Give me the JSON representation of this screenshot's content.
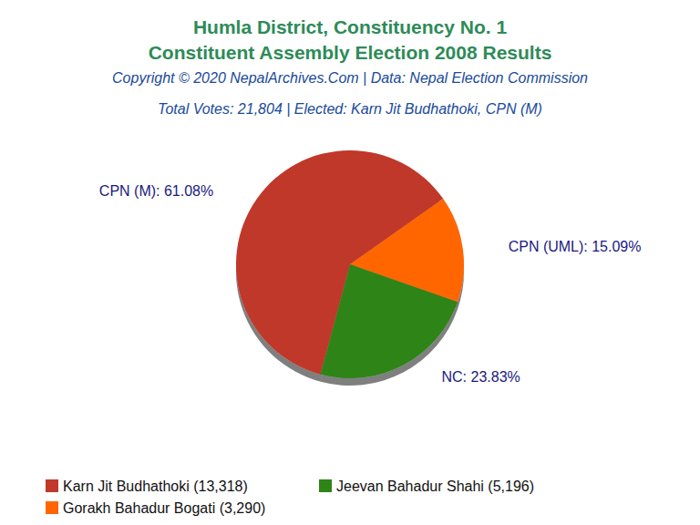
{
  "chart_data": {
    "type": "pie",
    "title": [
      "Humla District, Constituency No. 1",
      "Constituent Assembly Election 2008 Results"
    ],
    "subtitle": [
      "Copyright © 2020 NepalArchives.Com | Data: Nepal Election Commission",
      "Total Votes: 21,804 | Elected: Karn Jit Budhathoki, CPN (M)"
    ],
    "categories": [
      "CPN (M)",
      "CPN (UML)",
      "NC"
    ],
    "values": [
      61.08,
      15.09,
      23.83
    ],
    "value_labels": [
      "CPN (M): 61.08%",
      "CPN (UML): 15.09%",
      "NC: 23.83%"
    ],
    "series": [
      {
        "name": "Karn Jit Budhathoki (13,318)",
        "color": "#c0392b"
      },
      {
        "name": "Gorakh Bahadur Bogati (3,290)",
        "color": "#ff6600"
      },
      {
        "name": "Jeevan Bahadur Shahi (5,196)",
        "color": "#2e8417"
      }
    ],
    "data_labels": true,
    "legend": "bottom"
  }
}
